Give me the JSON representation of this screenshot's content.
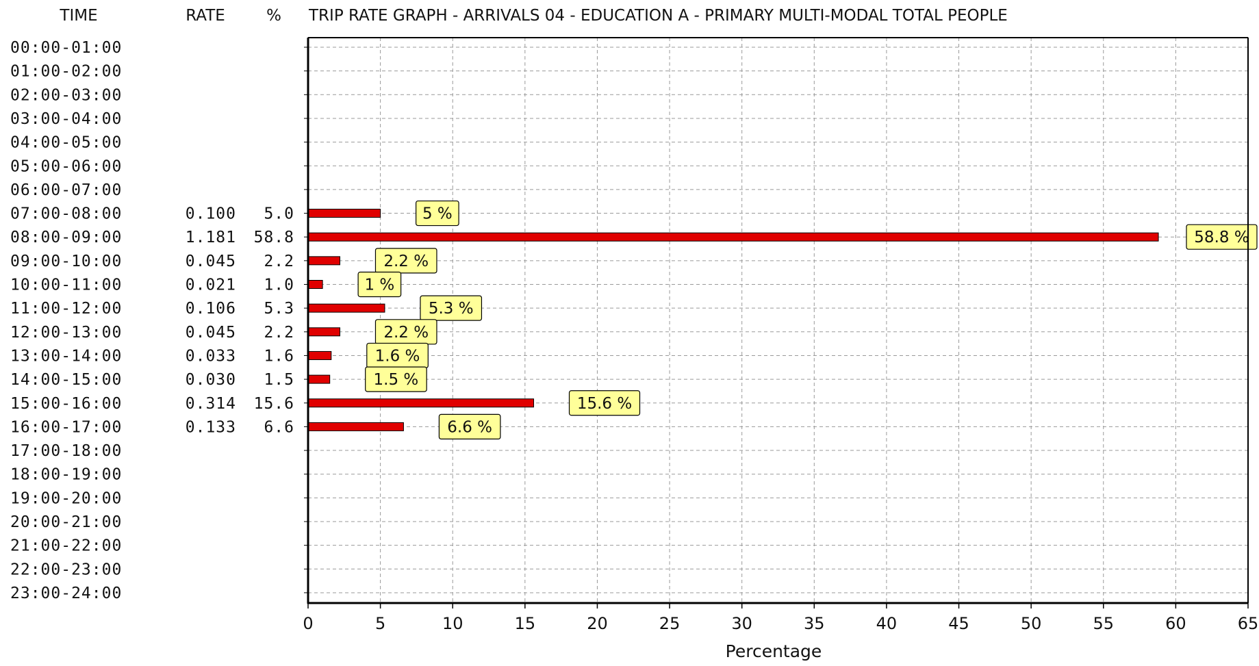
{
  "header": {
    "time": "TIME",
    "rate": "RATE",
    "percent": "%",
    "title": "TRIP RATE GRAPH - ARRIVALS  04 - EDUCATION  A - PRIMARY    MULTI-MODAL  TOTAL PEOPLE"
  },
  "chart_data": {
    "type": "bar",
    "orientation": "horizontal",
    "title": "TRIP RATE GRAPH - ARRIVALS  04 - EDUCATION  A - PRIMARY    MULTI-MODAL  TOTAL PEOPLE",
    "xlabel": "Percentage",
    "xlim": [
      0,
      65
    ],
    "xticks": [
      "0",
      "5",
      "10",
      "15",
      "20",
      "25",
      "30",
      "35",
      "40",
      "45",
      "50",
      "55",
      "60",
      "65"
    ],
    "grid": true,
    "bar_color": "#e00000",
    "callout_color": "#ffff99",
    "rows": [
      {
        "time": "00:00-01:00",
        "rate": "",
        "pct_text": "",
        "value": 0,
        "label": ""
      },
      {
        "time": "01:00-02:00",
        "rate": "",
        "pct_text": "",
        "value": 0,
        "label": ""
      },
      {
        "time": "02:00-03:00",
        "rate": "",
        "pct_text": "",
        "value": 0,
        "label": ""
      },
      {
        "time": "03:00-04:00",
        "rate": "",
        "pct_text": "",
        "value": 0,
        "label": ""
      },
      {
        "time": "04:00-05:00",
        "rate": "",
        "pct_text": "",
        "value": 0,
        "label": ""
      },
      {
        "time": "05:00-06:00",
        "rate": "",
        "pct_text": "",
        "value": 0,
        "label": ""
      },
      {
        "time": "06:00-07:00",
        "rate": "",
        "pct_text": "",
        "value": 0,
        "label": ""
      },
      {
        "time": "07:00-08:00",
        "rate": "0.100",
        "pct_text": "5.0",
        "value": 5.0,
        "label": "5 %"
      },
      {
        "time": "08:00-09:00",
        "rate": "1.181",
        "pct_text": "58.8",
        "value": 58.8,
        "label": "58.8 %"
      },
      {
        "time": "09:00-10:00",
        "rate": "0.045",
        "pct_text": "2.2",
        "value": 2.2,
        "label": "2.2 %"
      },
      {
        "time": "10:00-11:00",
        "rate": "0.021",
        "pct_text": "1.0",
        "value": 1.0,
        "label": "1 %"
      },
      {
        "time": "11:00-12:00",
        "rate": "0.106",
        "pct_text": "5.3",
        "value": 5.3,
        "label": "5.3 %"
      },
      {
        "time": "12:00-13:00",
        "rate": "0.045",
        "pct_text": "2.2",
        "value": 2.2,
        "label": "2.2 %"
      },
      {
        "time": "13:00-14:00",
        "rate": "0.033",
        "pct_text": "1.6",
        "value": 1.6,
        "label": "1.6 %"
      },
      {
        "time": "14:00-15:00",
        "rate": "0.030",
        "pct_text": "1.5",
        "value": 1.5,
        "label": "1.5 %"
      },
      {
        "time": "15:00-16:00",
        "rate": "0.314",
        "pct_text": "15.6",
        "value": 15.6,
        "label": "15.6 %"
      },
      {
        "time": "16:00-17:00",
        "rate": "0.133",
        "pct_text": "6.6",
        "value": 6.6,
        "label": "6.6 %"
      },
      {
        "time": "17:00-18:00",
        "rate": "",
        "pct_text": "",
        "value": 0,
        "label": ""
      },
      {
        "time": "18:00-19:00",
        "rate": "",
        "pct_text": "",
        "value": 0,
        "label": ""
      },
      {
        "time": "19:00-20:00",
        "rate": "",
        "pct_text": "",
        "value": 0,
        "label": ""
      },
      {
        "time": "20:00-21:00",
        "rate": "",
        "pct_text": "",
        "value": 0,
        "label": ""
      },
      {
        "time": "21:00-22:00",
        "rate": "",
        "pct_text": "",
        "value": 0,
        "label": ""
      },
      {
        "time": "22:00-23:00",
        "rate": "",
        "pct_text": "",
        "value": 0,
        "label": ""
      },
      {
        "time": "23:00-24:00",
        "rate": "",
        "pct_text": "",
        "value": 0,
        "label": ""
      }
    ]
  }
}
